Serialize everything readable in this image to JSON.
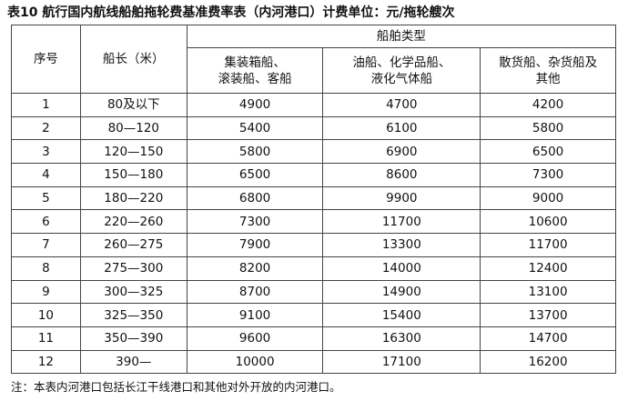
{
  "title": "表10 航行国内航线船舶拖轮费基准费率表（内河港口）计费单位：元/拖轮艘次",
  "table": {
    "header": {
      "index": "序号",
      "length": "船长（米）",
      "group": "船舶类型",
      "columns": [
        [
          "集装箱船、",
          "滚装船、客船"
        ],
        [
          "油船、化学品船、",
          "液化气体船"
        ],
        [
          "散货船、杂货船及",
          "其他"
        ]
      ]
    },
    "rows": [
      [
        "1",
        "80及以下",
        4900,
        4700,
        4200
      ],
      [
        "2",
        "80—120",
        5400,
        6100,
        5800
      ],
      [
        "3",
        "120—150",
        5800,
        6900,
        6500
      ],
      [
        "4",
        "150—180",
        6500,
        8600,
        7300
      ],
      [
        "5",
        "180—220",
        6800,
        9900,
        9000
      ],
      [
        "6",
        "220—260",
        7300,
        11700,
        10600
      ],
      [
        "7",
        "260—275",
        7900,
        13300,
        11700
      ],
      [
        "8",
        "275—300",
        8200,
        14000,
        12400
      ],
      [
        "9",
        "300—325",
        8700,
        14900,
        13100
      ],
      [
        "10",
        "325—350",
        9100,
        15400,
        13700
      ],
      [
        "11",
        "350—390",
        9600,
        16300,
        14700
      ],
      [
        "12",
        "390—",
        10000,
        17100,
        16200
      ]
    ]
  },
  "note": "注：本表内河港口包括长江干线港口和其他对外开放的内河港口。"
}
